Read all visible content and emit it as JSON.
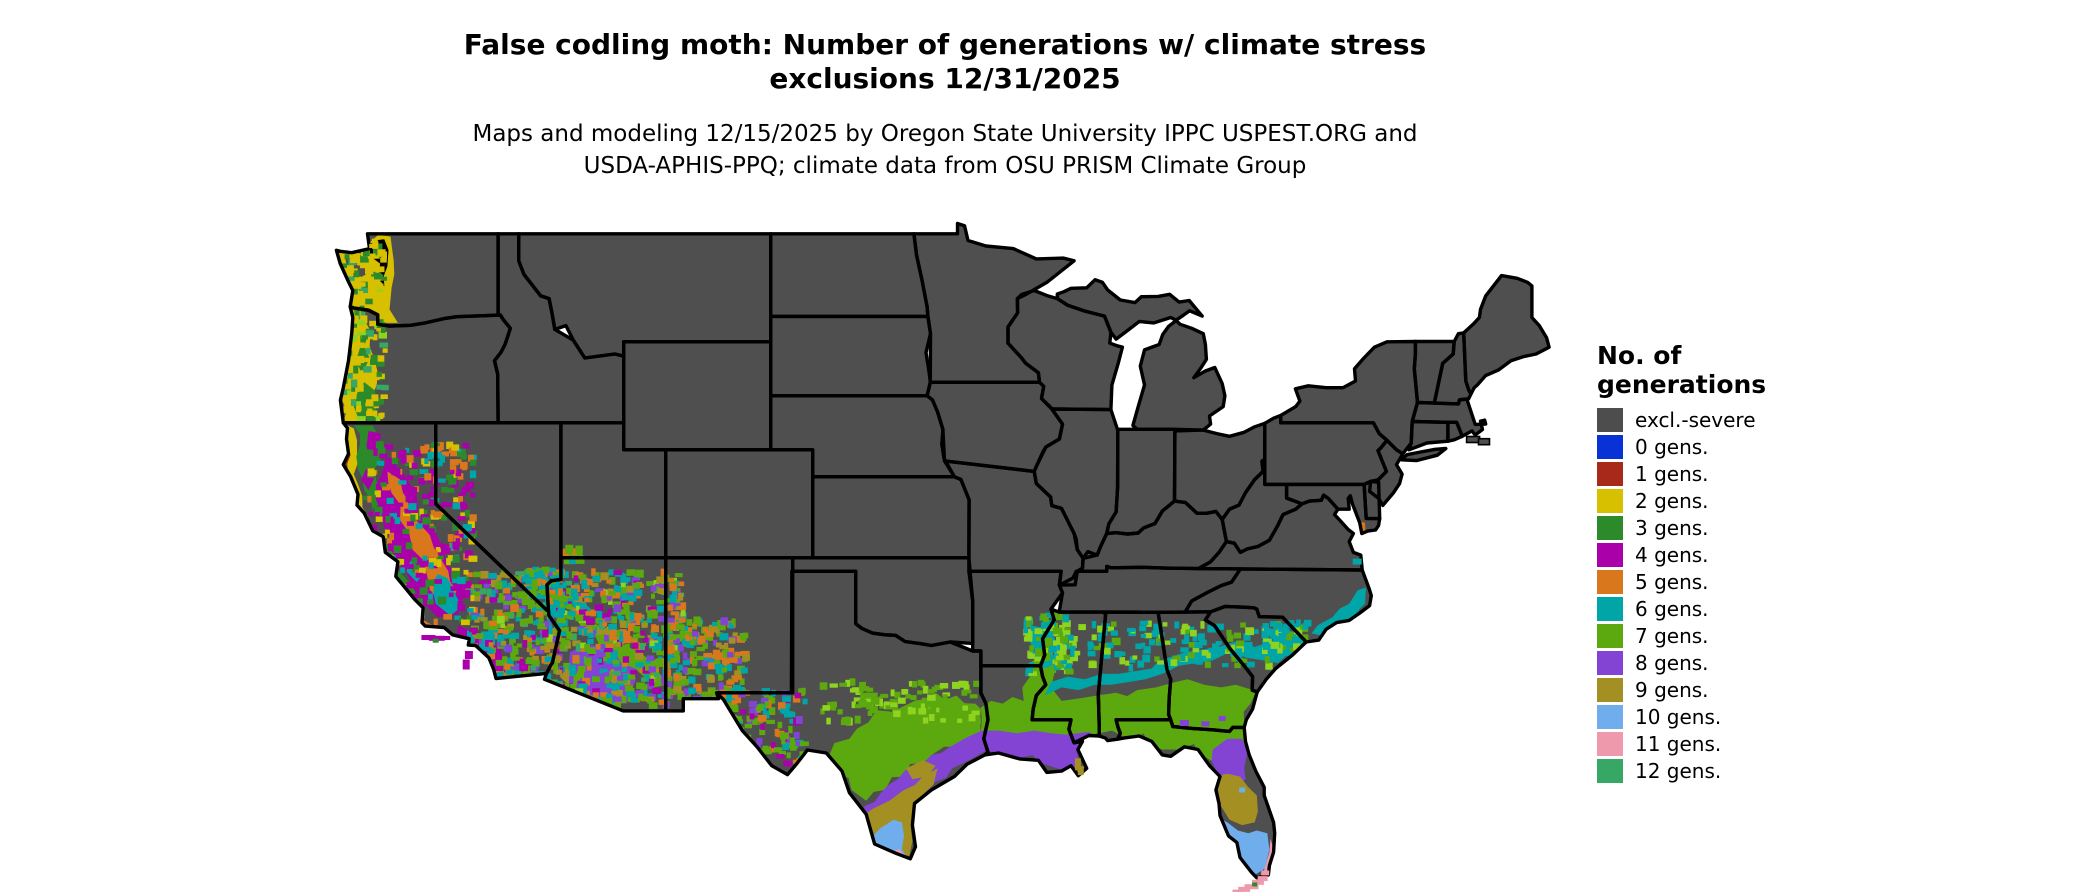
{
  "title": {
    "line1": "False codling moth: Number of generations w/ climate stress",
    "line2": "exclusions 12/31/2025"
  },
  "subtitle": {
    "line1": "Maps and modeling 12/15/2025 by Oregon State University IPPC USPEST.ORG and",
    "line2": "USDA-APHIS-PPQ; climate data from OSU PRISM Climate Group"
  },
  "legend": {
    "title_line1": "No. of",
    "title_line2": "generations",
    "items": [
      {
        "label": "excl.-severe",
        "color": "#4d4d4d"
      },
      {
        "label": "0 gens.",
        "color": "#0832d6"
      },
      {
        "label": "1 gens.",
        "color": "#a8291a"
      },
      {
        "label": "2 gens.",
        "color": "#d7c000"
      },
      {
        "label": "3 gens.",
        "color": "#2c8a2b"
      },
      {
        "label": "4 gens.",
        "color": "#aa00aa"
      },
      {
        "label": "5 gens.",
        "color": "#d9771c"
      },
      {
        "label": "6 gens.",
        "color": "#00a5a8"
      },
      {
        "label": "7 gens.",
        "color": "#5ca90f"
      },
      {
        "label": "8 gens.",
        "color": "#8343d3"
      },
      {
        "label": "9 gens.",
        "color": "#a38f22"
      },
      {
        "label": "10 gens.",
        "color": "#70adec"
      },
      {
        "label": "11 gens.",
        "color": "#ef99ad"
      },
      {
        "label": "12 gens.",
        "color": "#37a766"
      }
    ]
  },
  "map": {
    "land": "#4f4f4f",
    "border": "#000000",
    "water_fill": "#000000",
    "background": "#ffffff",
    "lime_fringe": "#8ed31e"
  }
}
